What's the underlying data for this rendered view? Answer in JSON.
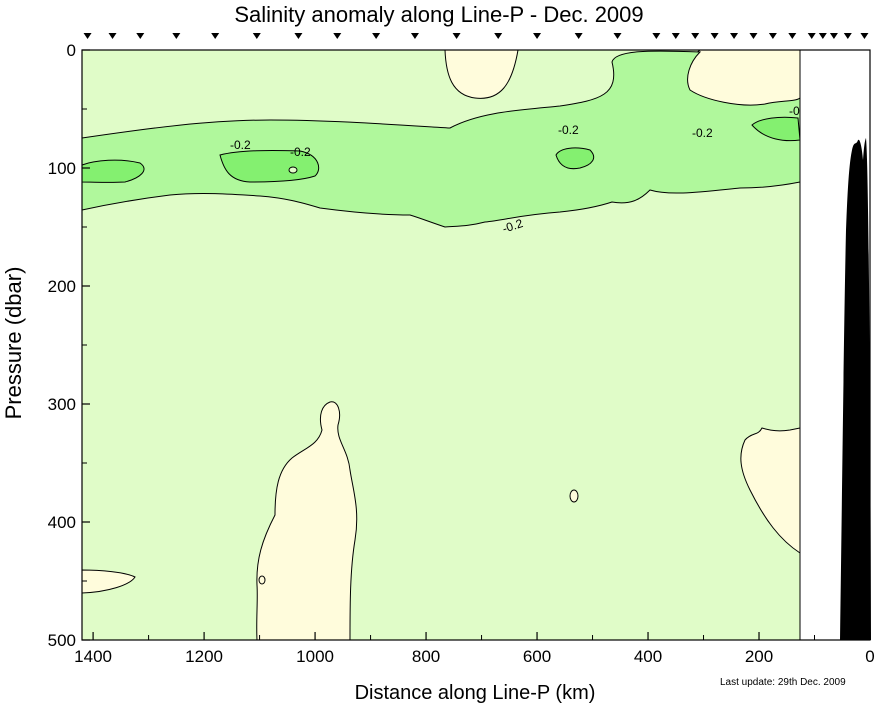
{
  "chart_data": {
    "type": "contour",
    "title": "Salinity anomaly along Line-P - Dec. 2009",
    "xlabel": "Distance along Line-P (km)",
    "ylabel": "Pressure (dbar)",
    "xlim": [
      1420,
      0
    ],
    "ylim": [
      500,
      0
    ],
    "x_ticks": [
      1400,
      1200,
      1000,
      800,
      600,
      400,
      200,
      0
    ],
    "y_ticks": [
      0,
      100,
      200,
      300,
      400,
      500
    ],
    "contour_labels": [
      "-0.2",
      "-0.2",
      "-0.2",
      "-0.2",
      "-0.2",
      "-0"
    ],
    "stations_km": [
      1410,
      1365,
      1315,
      1250,
      1180,
      1105,
      1030,
      960,
      890,
      820,
      745,
      670,
      600,
      525,
      455,
      385,
      350,
      315,
      280,
      245,
      210,
      175,
      140,
      105,
      85,
      65,
      40,
      10
    ],
    "data_coverage_km": [
      1420,
      125
    ],
    "colors": {
      "zero_to_minus_0_2": "#e0fcc8",
      "positive_anomaly": "#fffcdc",
      "minus_0_2_to_minus_0_4": "#b0f89c",
      "below_minus_0_4": "#84f070",
      "bathymetry": "#000000"
    }
  },
  "footer": {
    "last_update": "Last update: 29th Dec. 2009"
  }
}
